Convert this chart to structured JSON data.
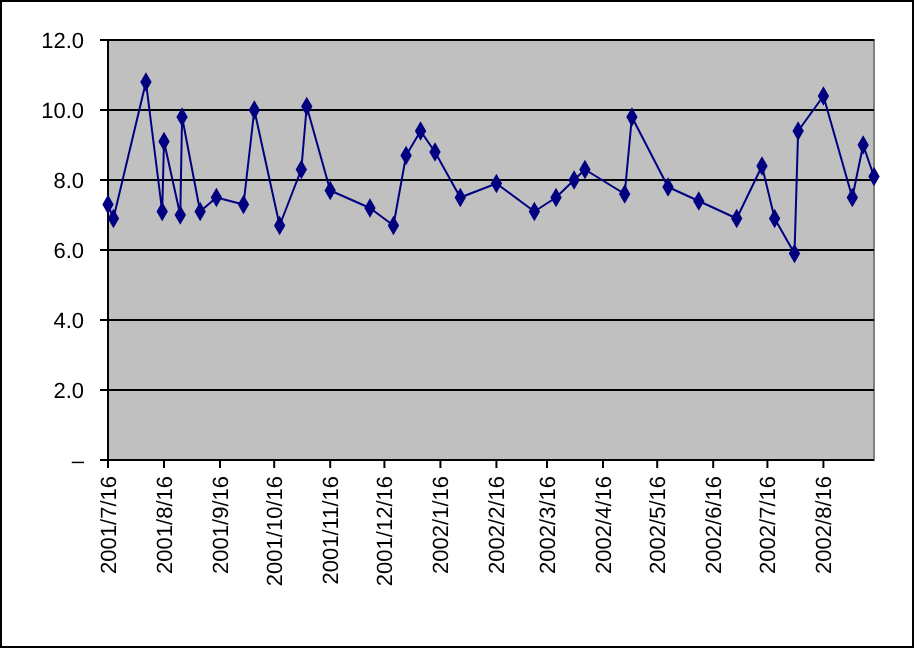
{
  "chart_data": {
    "type": "line",
    "marker": "diamond",
    "grid": "y",
    "x": [
      "2001-07-16",
      "2001-07-19",
      "2001-08-06",
      "2001-08-15",
      "2001-08-16",
      "2001-08-25",
      "2001-08-26",
      "2001-09-05",
      "2001-09-14",
      "2001-09-29",
      "2001-10-05",
      "2001-10-19",
      "2001-10-31",
      "2001-11-03",
      "2001-11-16",
      "2001-12-08",
      "2001-12-21",
      "2001-12-28",
      "2002-01-05",
      "2002-01-13",
      "2002-01-27",
      "2002-02-16",
      "2002-03-09",
      "2002-03-21",
      "2002-03-31",
      "2002-04-06",
      "2002-04-28",
      "2002-05-02",
      "2002-05-22",
      "2002-06-08",
      "2002-06-29",
      "2002-07-13",
      "2002-07-20",
      "2002-07-31",
      "2002-08-02",
      "2002-08-16",
      "2002-09-01",
      "2002-09-07",
      "2002-09-13"
    ],
    "series": [
      {
        "color": "#000080",
        "values": [
          7.3,
          6.9,
          10.8,
          7.1,
          9.1,
          7.0,
          9.8,
          7.1,
          7.5,
          7.3,
          10.0,
          6.7,
          8.3,
          10.1,
          7.7,
          7.2,
          6.7,
          8.7,
          9.4,
          8.8,
          7.5,
          7.9,
          7.1,
          7.5,
          8.0,
          8.3,
          7.6,
          9.8,
          7.8,
          7.4,
          6.9,
          8.4,
          6.9,
          5.9,
          9.4,
          10.4,
          7.5,
          9.0,
          8.1
        ]
      }
    ],
    "xlim": [
      "2001-07-16",
      "2002-09-13"
    ],
    "xticks": [
      {
        "value": "2001-07-16",
        "label": "2001/7/16"
      },
      {
        "value": "2001-08-16",
        "label": "2001/8/16"
      },
      {
        "value": "2001-09-16",
        "label": "2001/9/16"
      },
      {
        "value": "2001-10-16",
        "label": "2001/10/16"
      },
      {
        "value": "2001-11-16",
        "label": "2001/11/16"
      },
      {
        "value": "2001-12-16",
        "label": "2001/12/16"
      },
      {
        "value": "2002-01-16",
        "label": "2002/1/16"
      },
      {
        "value": "2002-02-16",
        "label": "2002/2/16"
      },
      {
        "value": "2002-03-16",
        "label": "2002/3/16"
      },
      {
        "value": "2002-04-16",
        "label": "2002/4/16"
      },
      {
        "value": "2002-05-16",
        "label": "2002/5/16"
      },
      {
        "value": "2002-06-16",
        "label": "2002/6/16"
      },
      {
        "value": "2002-07-16",
        "label": "2002/7/16"
      },
      {
        "value": "2002-08-16",
        "label": "2002/8/16"
      }
    ],
    "ylim": [
      0,
      12
    ],
    "yticks": [
      {
        "value": 0,
        "label": "–"
      },
      {
        "value": 2,
        "label": "2.0"
      },
      {
        "value": 4,
        "label": "4.0"
      },
      {
        "value": 6,
        "label": "6.0"
      },
      {
        "value": 8,
        "label": "8.0"
      },
      {
        "value": 10,
        "label": "10.0"
      },
      {
        "value": 12,
        "label": "12.0"
      }
    ]
  }
}
